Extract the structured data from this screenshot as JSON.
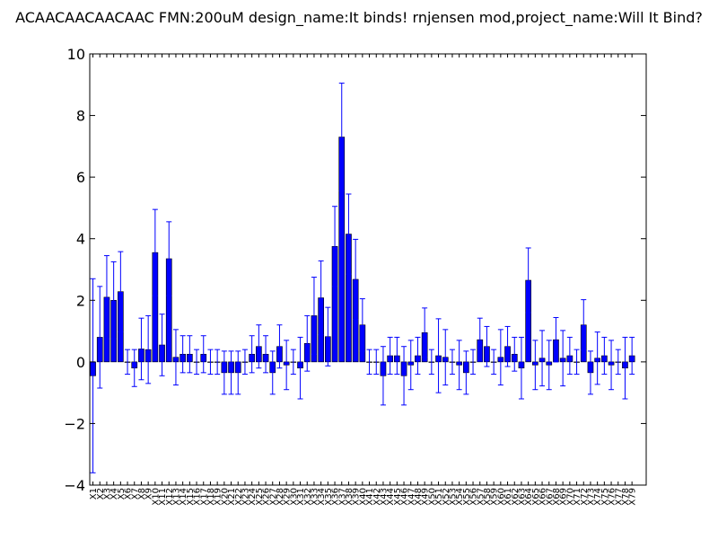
{
  "chart_data": {
    "type": "bar",
    "title": "ACAACAACAACAAC  FMN:200uM  design_name:It binds! rnjensen mod,project_name:Will It Bind?",
    "xlabel": "",
    "ylabel": "",
    "ylim": [
      -4,
      10
    ],
    "yticks": [
      -4,
      -2,
      0,
      2,
      4,
      6,
      8,
      10
    ],
    "grid": false,
    "bar_color": "#0000ff",
    "errorbar_color": "#0000ff",
    "categories": [
      "X1",
      "X2",
      "X3",
      "X4",
      "X5",
      "X6",
      "X7",
      "X8",
      "X9",
      "X10",
      "X11",
      "X12",
      "X13",
      "X14",
      "X15",
      "X16",
      "X17",
      "X18",
      "X19",
      "X20",
      "X21",
      "X22",
      "X23",
      "X24",
      "X25",
      "X26",
      "X27",
      "X28",
      "X29",
      "X30",
      "X31",
      "X32",
      "X33",
      "X34",
      "X35",
      "X36",
      "X37",
      "X38",
      "X39",
      "X40",
      "X41",
      "X42",
      "X43",
      "X44",
      "X45",
      "X46",
      "X47",
      "X48",
      "X49",
      "X50",
      "X51",
      "X52",
      "X53",
      "X54",
      "X55",
      "X56",
      "X57",
      "X58",
      "X59",
      "X60",
      "X61",
      "X62",
      "X63",
      "X64",
      "X65",
      "X66",
      "X67",
      "X68",
      "X69",
      "X70",
      "X71",
      "X72",
      "X73",
      "X74",
      "X75",
      "X76",
      "X77",
      "X78",
      "X79"
    ],
    "values": [
      -0.45,
      0.8,
      2.1,
      2.0,
      2.28,
      0.0,
      -0.2,
      0.42,
      0.4,
      3.55,
      0.55,
      3.35,
      0.15,
      0.25,
      0.25,
      0.0,
      0.25,
      0.0,
      0.0,
      -0.35,
      -0.35,
      -0.35,
      0.0,
      0.25,
      0.5,
      0.25,
      -0.35,
      0.5,
      -0.1,
      0.0,
      -0.2,
      0.6,
      1.5,
      2.08,
      0.82,
      3.75,
      7.3,
      4.15,
      2.68,
      1.2,
      0.0,
      0.0,
      -0.45,
      0.2,
      0.2,
      -0.45,
      -0.1,
      0.2,
      0.95,
      0.0,
      0.2,
      0.15,
      0.0,
      -0.1,
      -0.35,
      0.0,
      0.72,
      0.5,
      0.0,
      0.15,
      0.5,
      0.25,
      -0.2,
      2.65,
      -0.1,
      0.12,
      -0.1,
      0.72,
      0.12,
      0.2,
      0.0,
      1.2,
      -0.35,
      0.12,
      0.2,
      -0.1,
      0.0,
      -0.2,
      0.2
    ],
    "errors": [
      3.15,
      1.65,
      1.35,
      1.25,
      1.3,
      0.4,
      0.6,
      1.0,
      1.1,
      1.4,
      1.0,
      1.2,
      0.9,
      0.6,
      0.6,
      0.4,
      0.6,
      0.4,
      0.4,
      0.7,
      0.7,
      0.7,
      0.4,
      0.6,
      0.7,
      0.6,
      0.7,
      0.7,
      0.8,
      0.4,
      1.0,
      0.9,
      1.25,
      1.2,
      0.95,
      1.3,
      1.75,
      1.3,
      1.3,
      0.85,
      0.4,
      0.4,
      0.95,
      0.6,
      0.6,
      0.95,
      0.8,
      0.6,
      0.8,
      0.4,
      1.2,
      0.9,
      0.4,
      0.8,
      0.7,
      0.4,
      0.7,
      0.65,
      0.4,
      0.9,
      0.65,
      0.55,
      1.0,
      1.05,
      0.8,
      0.9,
      0.8,
      0.72,
      0.9,
      0.6,
      0.4,
      0.82,
      0.7,
      0.85,
      0.6,
      0.8,
      0.4,
      1.0,
      0.6
    ]
  }
}
